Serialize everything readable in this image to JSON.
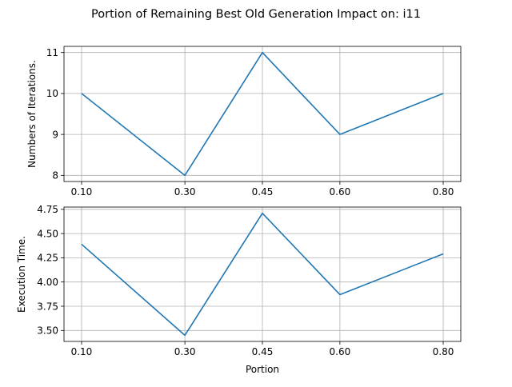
{
  "figure": {
    "suptitle": "Portion of Remaining Best Old Generation Impact on: i11"
  },
  "chart_data": [
    {
      "type": "line",
      "title": "",
      "xlabel": "",
      "ylabel": "Numbers of Iterations.",
      "x_tick_labels": [
        "0.10",
        "0.30",
        "0.45",
        "0.60",
        "0.80"
      ],
      "y_tick_labels": [
        "8",
        "9",
        "10",
        "11"
      ],
      "y_ticks": [
        8,
        9,
        10,
        11
      ],
      "x": [
        0.1,
        0.3,
        0.45,
        0.6,
        0.8
      ],
      "series": [
        {
          "values": [
            10,
            8,
            11,
            9,
            10
          ],
          "color": "#1f77b4"
        }
      ],
      "xlim": [
        0.066,
        0.834
      ],
      "ylim": [
        7.85,
        11.15
      ],
      "grid": true
    },
    {
      "type": "line",
      "title": "",
      "xlabel": "Portion",
      "ylabel": "Execution Time.",
      "x_tick_labels": [
        "0.10",
        "0.30",
        "0.45",
        "0.60",
        "0.80"
      ],
      "y_tick_labels": [
        "3.50",
        "3.75",
        "4.00",
        "4.25",
        "4.50",
        "4.75"
      ],
      "y_ticks": [
        3.5,
        3.75,
        4.0,
        4.25,
        4.5,
        4.75
      ],
      "x": [
        0.1,
        0.3,
        0.45,
        0.6,
        0.8
      ],
      "series": [
        {
          "values": [
            4.39,
            3.45,
            4.71,
            3.87,
            4.29
          ],
          "color": "#1f77b4"
        }
      ],
      "xlim": [
        0.066,
        0.834
      ],
      "ylim": [
        3.387,
        4.773
      ],
      "grid": true
    }
  ]
}
